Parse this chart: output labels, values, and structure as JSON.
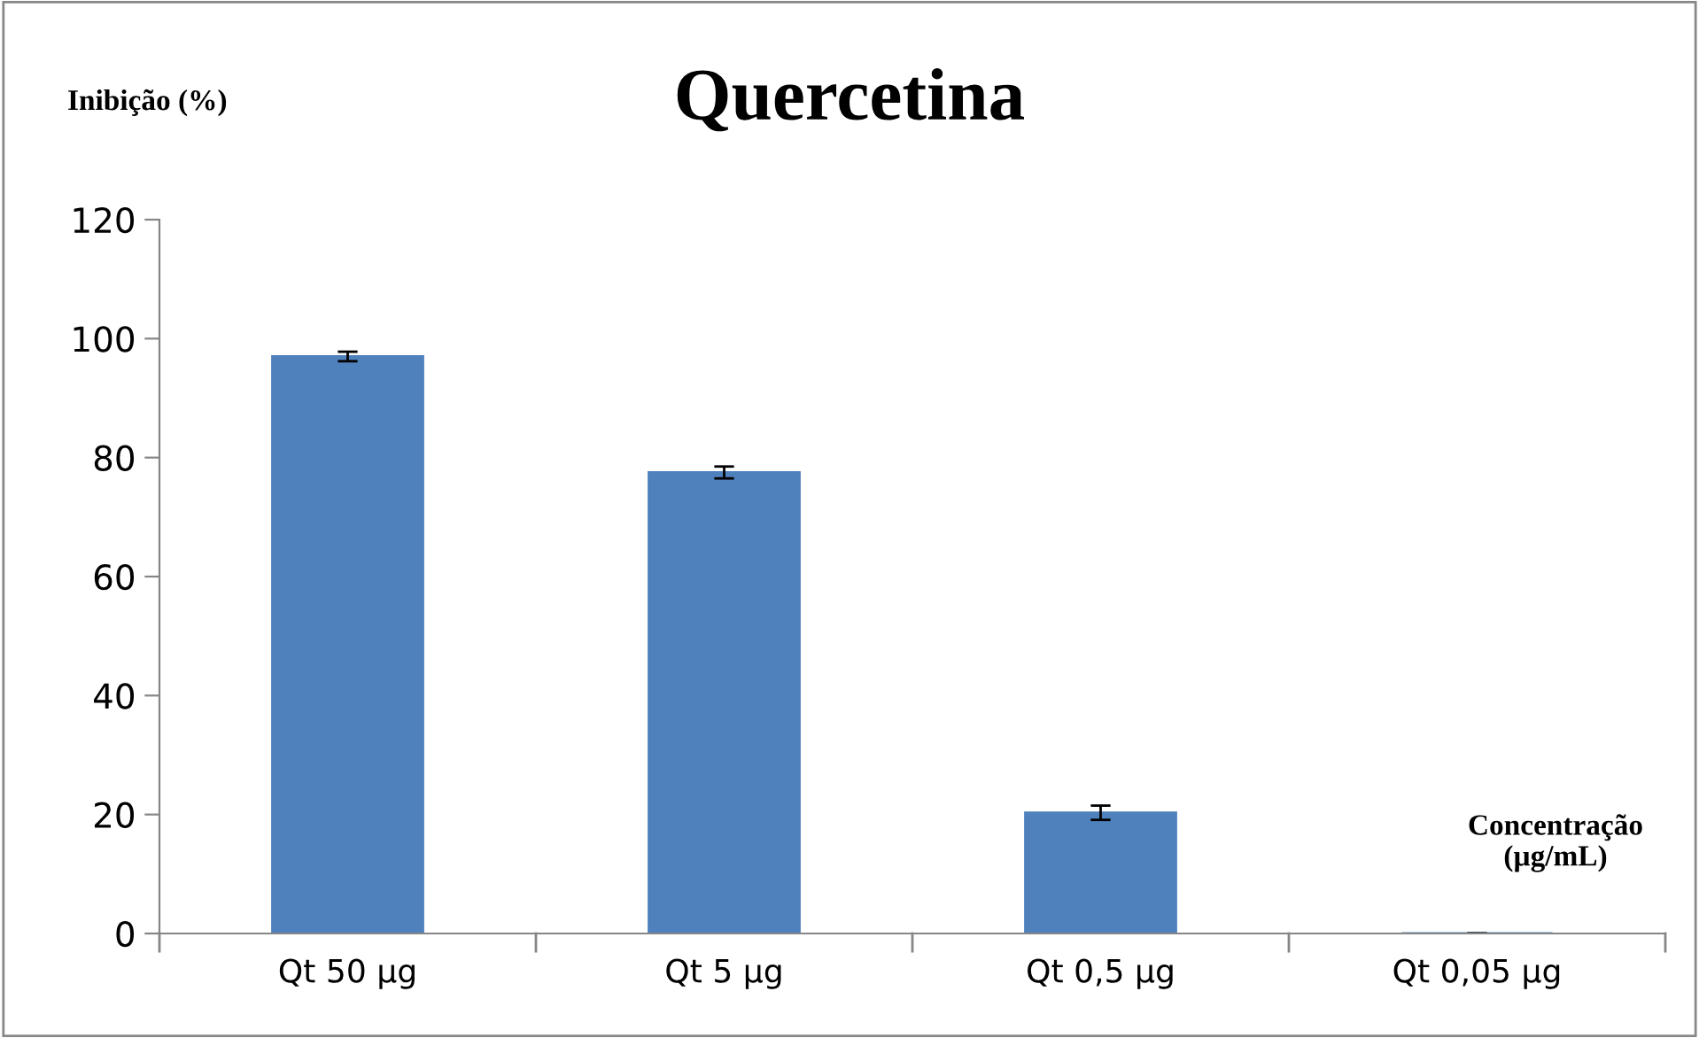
{
  "chart_data": {
    "type": "bar",
    "title": "Quercetina",
    "ylabel": "Inibição (%)",
    "annotations": [
      "Concentração\n(µg/mL)"
    ],
    "categories": [
      "Qt 50 µg",
      "Qt 5 µg",
      "Qt 0,5 µg",
      "Qt 0,05 µg"
    ],
    "values": [
      97.0,
      77.5,
      20.3,
      0
    ],
    "errors": [
      0.8,
      1.0,
      1.2,
      null
    ],
    "color": "#4f81bd",
    "ylim": [
      0,
      120
    ],
    "yticks": [
      0,
      20,
      40,
      60,
      80,
      100,
      120
    ],
    "grid": false
  }
}
